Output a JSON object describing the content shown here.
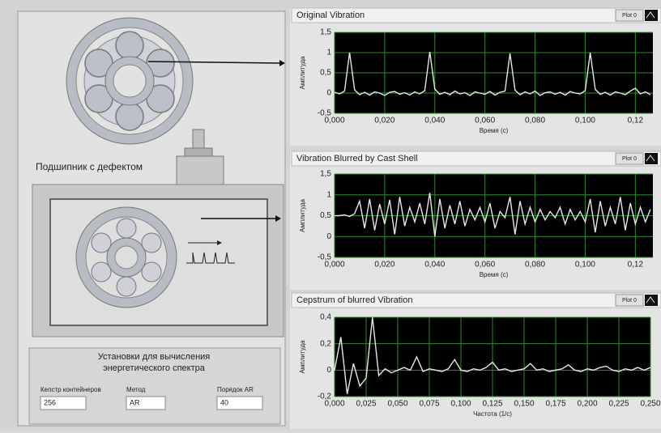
{
  "panel": {
    "bearing_label": "Подшипник с дефектом",
    "settings_title": "Установки для вычисления энергетического спектра",
    "controls": [
      {
        "label": "Кепстр контейнеров",
        "value": "256"
      },
      {
        "label": "Метод",
        "value": "AR"
      },
      {
        "label": "Порядок AR",
        "value": "40"
      }
    ]
  },
  "chart_data": [
    {
      "type": "line",
      "title": "Original Vibration",
      "xlabel": "Время (с)",
      "ylabel": "Амплитуда",
      "grid": true,
      "x": [
        0,
        0.002,
        0.004,
        0.006,
        0.008,
        0.01,
        0.012,
        0.014,
        0.016,
        0.018,
        0.02,
        0.022,
        0.024,
        0.026,
        0.028,
        0.03,
        0.032,
        0.034,
        0.036,
        0.038,
        0.04,
        0.042,
        0.044,
        0.046,
        0.048,
        0.05,
        0.052,
        0.054,
        0.056,
        0.058,
        0.06,
        0.062,
        0.064,
        0.066,
        0.068,
        0.07,
        0.072,
        0.074,
        0.076,
        0.078,
        0.08,
        0.082,
        0.084,
        0.086,
        0.088,
        0.09,
        0.092,
        0.094,
        0.096,
        0.098,
        0.1,
        0.102,
        0.104,
        0.106,
        0.108,
        0.11,
        0.112,
        0.114,
        0.116,
        0.118,
        0.12,
        0.122,
        0.124,
        0.126
      ],
      "series": [
        {
          "name": "Plot 0",
          "color": "#e6e6e6",
          "values": [
            0.02,
            -0.02,
            0.05,
            1.0,
            0.08,
            -0.04,
            0.02,
            -0.05,
            0.03,
            0.0,
            -0.06,
            0.02,
            0.04,
            -0.03,
            0.01,
            -0.05,
            0.03,
            -0.02,
            0.06,
            1.02,
            0.1,
            -0.03,
            0.02,
            -0.04,
            0.05,
            -0.02,
            0.01,
            -0.06,
            0.03,
            0.0,
            -0.03,
            0.04,
            -0.05,
            0.02,
            0.05,
            0.98,
            0.07,
            -0.04,
            0.03,
            -0.02,
            0.05,
            -0.06,
            0.01,
            0.03,
            -0.03,
            0.02,
            -0.05,
            0.04,
            0.0,
            -0.02,
            0.06,
            1.0,
            0.09,
            -0.03,
            0.02,
            -0.05,
            0.03,
            0.0,
            -0.04,
            0.05,
            0.12,
            -0.02,
            0.03,
            -0.04
          ]
        }
      ],
      "xlim": [
        0,
        0.127
      ],
      "xticks": [
        {
          "value": 0,
          "label": "0,000"
        },
        {
          "value": 0.02,
          "label": "0,020"
        },
        {
          "value": 0.04,
          "label": "0,040"
        },
        {
          "value": 0.06,
          "label": "0,060"
        },
        {
          "value": 0.08,
          "label": "0,080"
        },
        {
          "value": 0.1,
          "label": "0,100"
        },
        {
          "value": 0.12,
          "label": "0,12"
        }
      ],
      "ylim": [
        -0.5,
        1.5
      ],
      "yticks": [
        {
          "value": -0.5,
          "label": "-0,5"
        },
        0,
        {
          "value": 0.5,
          "label": "0,5"
        },
        1,
        {
          "value": 1.5,
          "label": "1,5"
        }
      ]
    },
    {
      "type": "line",
      "title": "Vibration Blurred by Cast Shell",
      "xlabel": "Время (с)",
      "ylabel": "Амплитуда",
      "grid": true,
      "x": [
        0,
        0.002,
        0.004,
        0.006,
        0.008,
        0.01,
        0.012,
        0.014,
        0.016,
        0.018,
        0.02,
        0.022,
        0.024,
        0.026,
        0.028,
        0.03,
        0.032,
        0.034,
        0.036,
        0.038,
        0.04,
        0.042,
        0.044,
        0.046,
        0.048,
        0.05,
        0.052,
        0.054,
        0.056,
        0.058,
        0.06,
        0.062,
        0.064,
        0.066,
        0.068,
        0.07,
        0.072,
        0.074,
        0.076,
        0.078,
        0.08,
        0.082,
        0.084,
        0.086,
        0.088,
        0.09,
        0.092,
        0.094,
        0.096,
        0.098,
        0.1,
        0.102,
        0.104,
        0.106,
        0.108,
        0.11,
        0.112,
        0.114,
        0.116,
        0.118,
        0.12,
        0.122,
        0.124,
        0.126
      ],
      "series": [
        {
          "name": "Plot 0",
          "color": "#e6e6e6",
          "values": [
            0.5,
            0.5,
            0.52,
            0.48,
            0.55,
            0.85,
            0.2,
            0.9,
            0.15,
            0.78,
            0.3,
            0.88,
            0.05,
            0.95,
            0.25,
            0.7,
            0.35,
            0.8,
            0.3,
            1.05,
            0.0,
            0.9,
            0.2,
            0.75,
            0.3,
            0.85,
            0.25,
            0.65,
            0.4,
            0.7,
            0.35,
            0.8,
            0.2,
            0.6,
            0.45,
            0.95,
            0.05,
            0.85,
            0.3,
            0.7,
            0.35,
            0.65,
            0.4,
            0.6,
            0.45,
            0.7,
            0.3,
            0.65,
            0.4,
            0.6,
            0.35,
            0.9,
            0.1,
            0.85,
            0.25,
            0.7,
            0.3,
            0.95,
            0.15,
            0.8,
            0.3,
            0.7,
            0.35,
            0.65
          ]
        }
      ],
      "xlim": [
        0,
        0.127
      ],
      "xticks": [
        {
          "value": 0,
          "label": "0,000"
        },
        {
          "value": 0.02,
          "label": "0,020"
        },
        {
          "value": 0.04,
          "label": "0,040"
        },
        {
          "value": 0.06,
          "label": "0,060"
        },
        {
          "value": 0.08,
          "label": "0,080"
        },
        {
          "value": 0.1,
          "label": "0,100"
        },
        {
          "value": 0.12,
          "label": "0,12"
        }
      ],
      "ylim": [
        -0.5,
        1.5
      ],
      "yticks": [
        {
          "value": -0.5,
          "label": "-0,5"
        },
        0,
        {
          "value": 0.5,
          "label": "0,5"
        },
        1,
        {
          "value": 1.5,
          "label": "1,5"
        }
      ]
    },
    {
      "type": "line",
      "title": "Cepstrum of blurred Vibration",
      "xlabel": "Частота (1/с)",
      "ylabel": "Амплитуда",
      "grid": true,
      "x": [
        0,
        0.005,
        0.01,
        0.015,
        0.02,
        0.025,
        0.03,
        0.035,
        0.04,
        0.045,
        0.05,
        0.055,
        0.06,
        0.065,
        0.07,
        0.075,
        0.08,
        0.085,
        0.09,
        0.095,
        0.1,
        0.105,
        0.11,
        0.115,
        0.12,
        0.125,
        0.13,
        0.135,
        0.14,
        0.145,
        0.15,
        0.155,
        0.16,
        0.165,
        0.17,
        0.175,
        0.18,
        0.185,
        0.19,
        0.195,
        0.2,
        0.205,
        0.21,
        0.215,
        0.22,
        0.225,
        0.23,
        0.235,
        0.24,
        0.245,
        0.25
      ],
      "series": [
        {
          "name": "Plot 0",
          "color": "#e6e6e6",
          "values": [
            0.0,
            0.25,
            -0.18,
            0.05,
            -0.12,
            -0.06,
            0.4,
            -0.04,
            0.01,
            -0.02,
            0.0,
            0.02,
            0.0,
            0.1,
            -0.01,
            0.01,
            0.0,
            -0.01,
            0.01,
            0.08,
            0.0,
            -0.01,
            0.01,
            0.0,
            0.02,
            0.06,
            0.0,
            0.01,
            -0.01,
            0.0,
            0.01,
            0.05,
            0.0,
            0.01,
            -0.01,
            0.0,
            0.01,
            0.04,
            0.0,
            -0.01,
            0.01,
            0.0,
            0.02,
            0.03,
            0.0,
            -0.01,
            0.01,
            0.0,
            0.02,
            0.0,
            0.02
          ]
        }
      ],
      "xlim": [
        0,
        0.25
      ],
      "xticks": [
        {
          "value": 0,
          "label": "0,000"
        },
        {
          "value": 0.025,
          "label": "0,025"
        },
        {
          "value": 0.05,
          "label": "0,050"
        },
        {
          "value": 0.075,
          "label": "0,075"
        },
        {
          "value": 0.1,
          "label": "0,100"
        },
        {
          "value": 0.125,
          "label": "0,125"
        },
        {
          "value": 0.15,
          "label": "0,150"
        },
        {
          "value": 0.175,
          "label": "0,175"
        },
        {
          "value": 0.2,
          "label": "0,200"
        },
        {
          "value": 0.225,
          "label": "0,225"
        },
        {
          "value": 0.25,
          "label": "0,250"
        }
      ],
      "ylim": [
        -0.2,
        0.4
      ],
      "yticks": [
        {
          "value": -0.2,
          "label": "-0,2"
        },
        0,
        {
          "value": 0.2,
          "label": "0,2"
        },
        {
          "value": 0.4,
          "label": "0,4"
        }
      ]
    }
  ]
}
